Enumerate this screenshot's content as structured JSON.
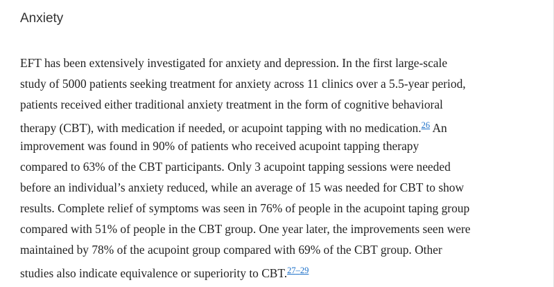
{
  "heading": "Anxiety",
  "paragraph": {
    "lines": [
      [
        {
          "text": "EFT has been extensively investigated for anxiety and depression. In the first large-scale"
        }
      ],
      [
        {
          "text": "study of 5000 patients seeking treatment for anxiety across 11 clinics over a 5.5-year period,"
        }
      ],
      [
        {
          "text": "patients received either traditional anxiety treatment in the form of cognitive behavioral"
        }
      ],
      [
        {
          "text": "therapy (CBT), with medication if needed, or acupoint tapping with no medication."
        },
        {
          "ref": "26"
        },
        {
          "text": " An"
        }
      ],
      [
        {
          "text": "improvement was found in 90% of patients who received acupoint tapping therapy"
        }
      ],
      [
        {
          "text": "compared to 63% of the CBT participants. Only 3 acupoint tapping sessions were needed"
        }
      ],
      [
        {
          "text": "before an individual’s anxiety reduced, while an average of 15 was needed for CBT to show"
        }
      ],
      [
        {
          "text": "results. Complete relief of symptoms was seen in 76% of people in the acupoint taping group"
        }
      ],
      [
        {
          "text": "compared with 51% of people in the CBT group. One year later, the improvements seen were"
        }
      ],
      [
        {
          "text": "maintained by 78% of the acupoint group compared with 69% of the CBT group. Other"
        }
      ],
      [
        {
          "text": "studies also indicate equivalence or superiority to CBT."
        },
        {
          "ref": "27"
        },
        {
          "text": "–"
        },
        {
          "ref": "29"
        }
      ]
    ]
  }
}
